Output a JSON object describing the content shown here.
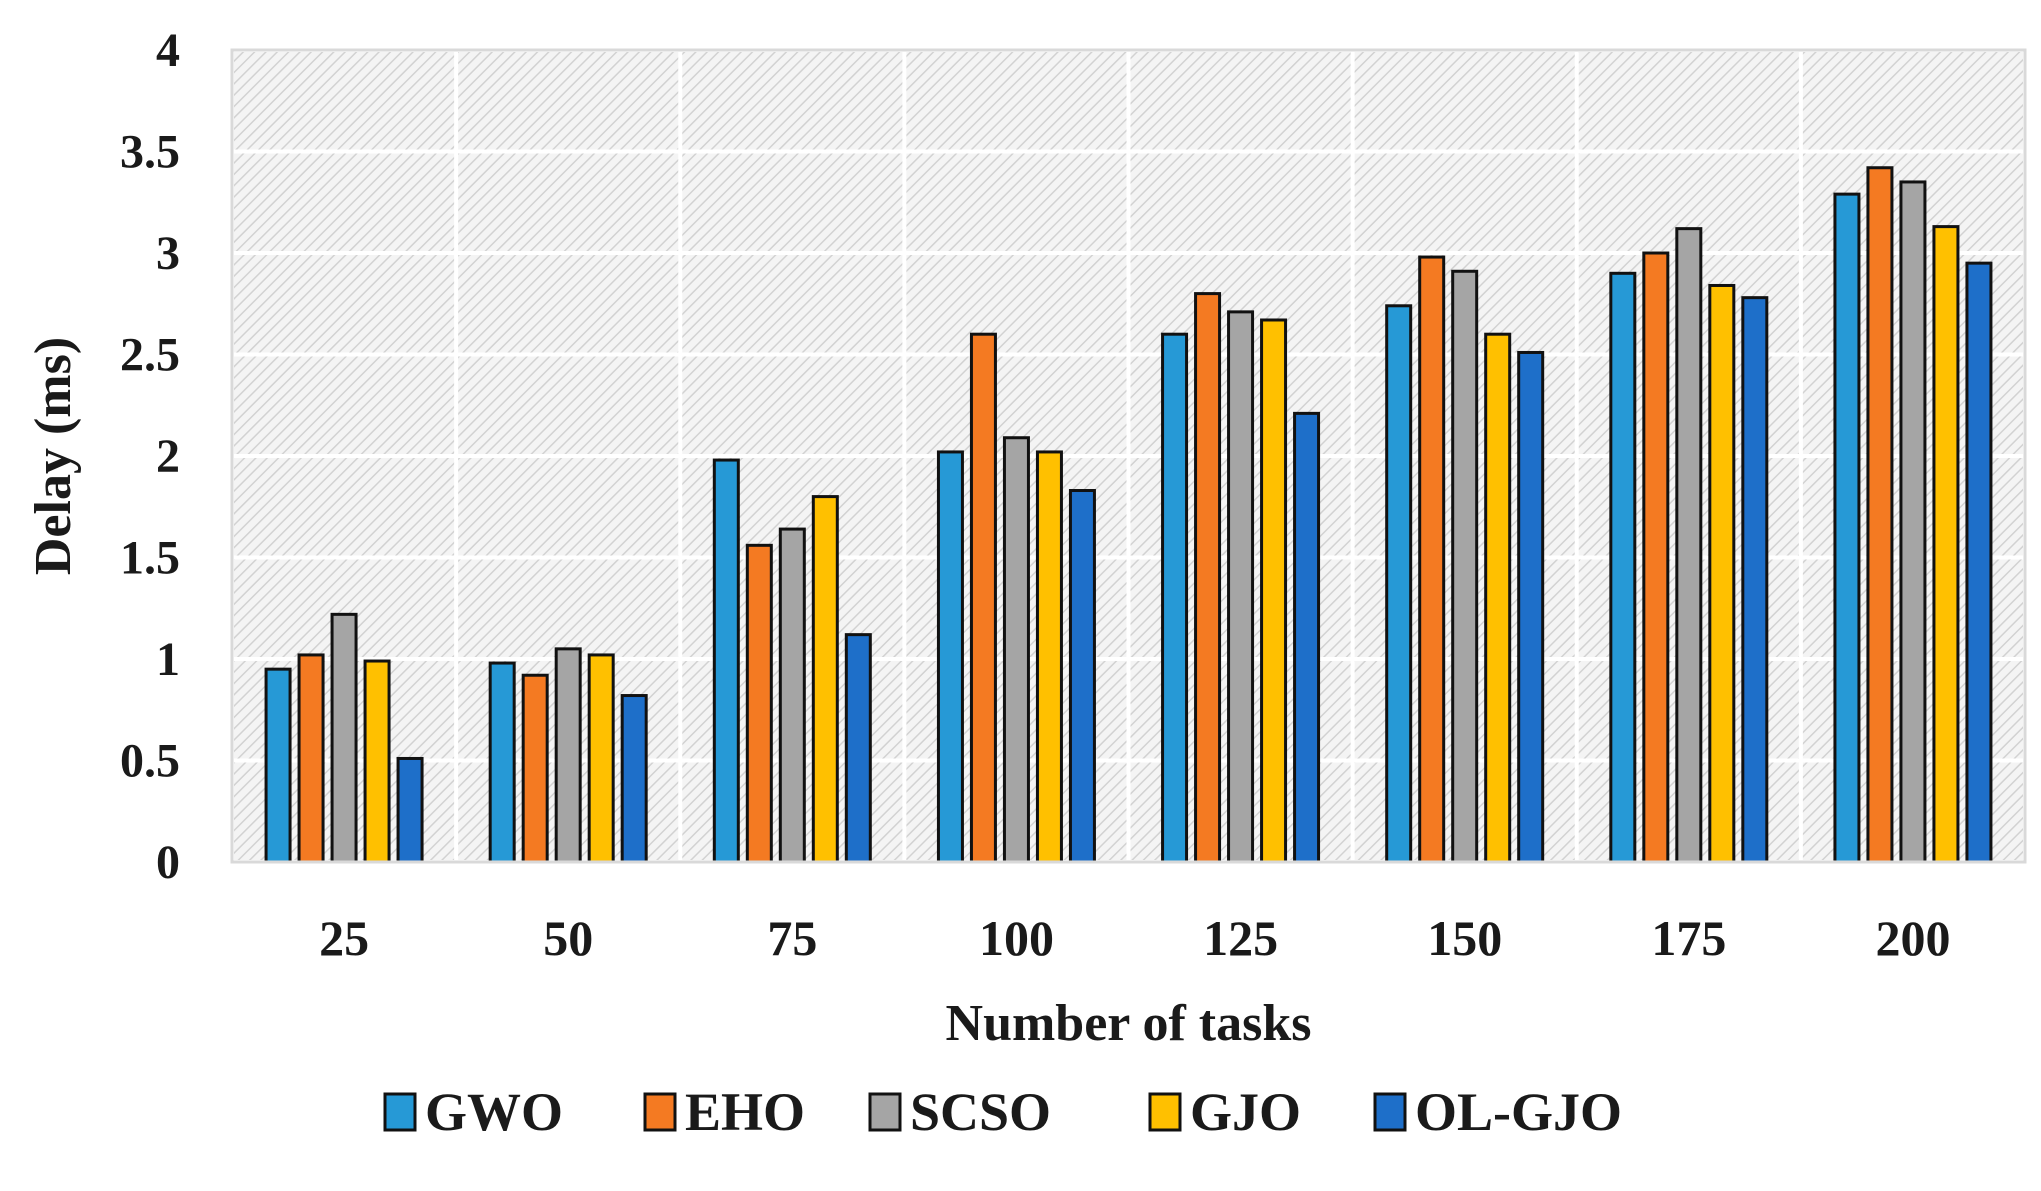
{
  "chart_data": {
    "type": "bar",
    "title": "",
    "xlabel": "Number of tasks",
    "ylabel": "Delay (ms)",
    "ylim": [
      0,
      4
    ],
    "yticks": [
      "0",
      "0.5",
      "1",
      "1.5",
      "2",
      "2.5",
      "3",
      "3.5",
      "4"
    ],
    "grid": true,
    "legend_position": "bottom",
    "categories": [
      "25",
      "50",
      "75",
      "100",
      "125",
      "150",
      "175",
      "200"
    ],
    "series": [
      {
        "name": "GWO",
        "color": "#2699d6",
        "values": [
          0.95,
          0.98,
          1.98,
          2.02,
          2.6,
          2.74,
          2.9,
          3.29
        ]
      },
      {
        "name": "EHO",
        "color": "#f47a22",
        "values": [
          1.02,
          0.92,
          1.56,
          2.6,
          2.8,
          2.98,
          3.0,
          3.42
        ]
      },
      {
        "name": "SCSO",
        "color": "#a5a5a5",
        "values": [
          1.22,
          1.05,
          1.64,
          2.09,
          2.71,
          2.91,
          3.12,
          3.35
        ]
      },
      {
        "name": "GJO",
        "color": "#ffc000",
        "values": [
          0.99,
          1.02,
          1.8,
          2.02,
          2.67,
          2.6,
          2.84,
          3.13
        ]
      },
      {
        "name": "OL-GJO",
        "color": "#1e6fc9",
        "values": [
          0.51,
          0.82,
          1.12,
          1.83,
          2.21,
          2.51,
          2.78,
          2.95
        ]
      }
    ]
  }
}
